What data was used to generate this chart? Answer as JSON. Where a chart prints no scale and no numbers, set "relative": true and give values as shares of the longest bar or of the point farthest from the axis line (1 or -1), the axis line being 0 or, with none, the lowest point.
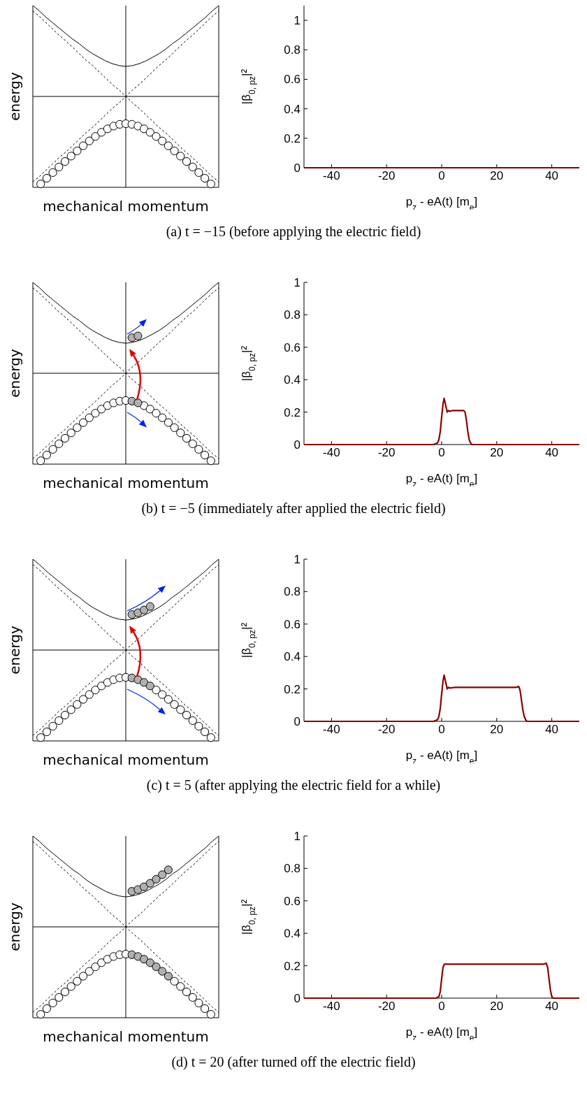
{
  "chart_data": [
    {
      "type": "line",
      "relative": true,
      "xlabel": "mechanical momentum",
      "ylabel": "energy",
      "grid": false,
      "legend": false,
      "categories": [
        null,
        null,
        null,
        null,
        null,
        null,
        null,
        null,
        null,
        null,
        null,
        null,
        null,
        null,
        null,
        null,
        null,
        null,
        null,
        null,
        null,
        null,
        null,
        null,
        null,
        null,
        null,
        null,
        null
      ],
      "series": [
        {
          "color": "#000000",
          "values": [
            1,
            0.94,
            0.87,
            0.81,
            0.75,
            0.69,
            0.63,
            0.58,
            0.52,
            0.47,
            0.43,
            0.39,
            0.36,
            0.34,
            0.33,
            0.34,
            0.36,
            0.39,
            0.43,
            0.47,
            0.52,
            0.58,
            0.63,
            0.69,
            0.75,
            0.81,
            0.87,
            0.94,
            1
          ]
        },
        {
          "color": "#000000",
          "line_style": "dashed",
          "values": [
            -0.94,
            -0.88,
            -0.81,
            -0.74,
            -0.67,
            -0.61,
            -0.54,
            -0.47,
            -0.4,
            -0.34,
            -0.27,
            -0.2,
            -0.13,
            -0.07,
            0,
            0.07,
            0.13,
            0.2,
            0.27,
            0.34,
            0.4,
            0.47,
            0.54,
            0.61,
            0.67,
            0.74,
            0.81,
            0.88,
            0.94
          ]
        },
        {
          "color": "#000000",
          "line_style": "dashed",
          "values": [
            0.94,
            0.88,
            0.81,
            0.74,
            0.67,
            0.61,
            0.54,
            0.47,
            0.4,
            0.34,
            0.27,
            0.2,
            0.13,
            0.07,
            0,
            -0.07,
            -0.13,
            -0.2,
            -0.27,
            -0.34,
            -0.4,
            -0.47,
            -0.54,
            -0.61,
            -0.67,
            -0.74,
            -0.81,
            -0.88,
            -0.94
          ]
        }
      ]
    },
    {
      "type": "line",
      "xlabel": "p$_{z}$ - eA(t) [m$_{e}$]",
      "ylabel": "|β$_{0, p}$$_{z}$|²",
      "xlim": [
        -50,
        50
      ],
      "ylim": [
        0,
        1.1
      ],
      "xticks": [
        -40,
        -20,
        0,
        20,
        40
      ],
      "yticks": [
        0,
        0.2,
        0.4,
        0.6,
        0.8,
        1
      ],
      "grid": false,
      "legend": false,
      "series": [
        {
          "color": "#8b0000",
          "x": [
            -50,
            50
          ],
          "values": [
            0,
            0
          ]
        }
      ],
      "annotations": [
        "(a) t = −15 (before applying the electric field)"
      ]
    },
    {
      "type": "line",
      "relative": true,
      "xlabel": "mechanical momentum",
      "ylabel": "energy",
      "grid": false,
      "legend": false,
      "categories": [
        null,
        null,
        null,
        null,
        null,
        null,
        null,
        null,
        null,
        null,
        null,
        null,
        null,
        null,
        null,
        null,
        null,
        null,
        null,
        null,
        null,
        null,
        null,
        null,
        null,
        null,
        null,
        null,
        null
      ],
      "series": [
        {
          "color": "#000000",
          "values": [
            1,
            0.94,
            0.87,
            0.81,
            0.75,
            0.69,
            0.63,
            0.58,
            0.52,
            0.47,
            0.43,
            0.39,
            0.36,
            0.34,
            0.33,
            0.34,
            0.36,
            0.39,
            0.43,
            0.47,
            0.52,
            0.58,
            0.63,
            0.69,
            0.75,
            0.81,
            0.87,
            0.94,
            1
          ]
        },
        {
          "color": "#000000",
          "line_style": "dashed",
          "values": [
            -0.94,
            -0.88,
            -0.81,
            -0.74,
            -0.67,
            -0.61,
            -0.54,
            -0.47,
            -0.4,
            -0.34,
            -0.27,
            -0.2,
            -0.13,
            -0.07,
            0,
            0.07,
            0.13,
            0.2,
            0.27,
            0.34,
            0.4,
            0.47,
            0.54,
            0.61,
            0.67,
            0.74,
            0.81,
            0.88,
            0.94
          ]
        },
        {
          "color": "#000000",
          "line_style": "dashed",
          "values": [
            0.94,
            0.88,
            0.81,
            0.74,
            0.67,
            0.61,
            0.54,
            0.47,
            0.4,
            0.34,
            0.27,
            0.2,
            0.13,
            0.07,
            0,
            -0.07,
            -0.13,
            -0.2,
            -0.27,
            -0.34,
            -0.4,
            -0.47,
            -0.54,
            -0.61,
            -0.67,
            -0.74,
            -0.81,
            -0.88,
            -0.94
          ]
        }
      ]
    },
    {
      "type": "line",
      "xlabel": "p$_{z}$ - eA(t) [m$_{e}$]",
      "ylabel": "|β$_{0, p}$$_{z}$|²",
      "xlim": [
        -50,
        50
      ],
      "ylim": [
        0,
        1
      ],
      "xticks": [
        -40,
        -20,
        0,
        20,
        40
      ],
      "yticks": [
        0,
        0.2,
        0.4,
        0.6,
        0.8,
        1
      ],
      "grid": false,
      "legend": false,
      "series": [
        {
          "color": "#8b0000",
          "x": [
            -50,
            -3,
            -1.5,
            -1,
            -0.5,
            0,
            0.5,
            0.9,
            1.5,
            2,
            2.5,
            3,
            4,
            6,
            8,
            8.5,
            9,
            9.5,
            10,
            10.5,
            11,
            50
          ],
          "values": [
            0,
            0,
            0.01,
            0.03,
            0.08,
            0.17,
            0.25,
            0.285,
            0.24,
            0.2,
            0.21,
            0.205,
            0.21,
            0.21,
            0.21,
            0.2,
            0.15,
            0.08,
            0.03,
            0.01,
            0,
            0
          ]
        }
      ],
      "annotations": [
        "(b) t = −5 (immediately after applied the electric field)"
      ]
    },
    {
      "type": "line",
      "relative": true,
      "xlabel": "mechanical momentum",
      "ylabel": "energy",
      "grid": false,
      "legend": false,
      "categories": [
        null,
        null,
        null,
        null,
        null,
        null,
        null,
        null,
        null,
        null,
        null,
        null,
        null,
        null,
        null,
        null,
        null,
        null,
        null,
        null,
        null,
        null,
        null,
        null,
        null,
        null,
        null,
        null,
        null
      ],
      "series": [
        {
          "color": "#000000",
          "values": [
            1,
            0.94,
            0.87,
            0.81,
            0.75,
            0.69,
            0.63,
            0.58,
            0.52,
            0.47,
            0.43,
            0.39,
            0.36,
            0.34,
            0.33,
            0.34,
            0.36,
            0.39,
            0.43,
            0.47,
            0.52,
            0.58,
            0.63,
            0.69,
            0.75,
            0.81,
            0.87,
            0.94,
            1
          ]
        },
        {
          "color": "#000000",
          "line_style": "dashed",
          "values": [
            -0.94,
            -0.88,
            -0.81,
            -0.74,
            -0.67,
            -0.61,
            -0.54,
            -0.47,
            -0.4,
            -0.34,
            -0.27,
            -0.2,
            -0.13,
            -0.07,
            0,
            0.07,
            0.13,
            0.2,
            0.27,
            0.34,
            0.4,
            0.47,
            0.54,
            0.61,
            0.67,
            0.74,
            0.81,
            0.88,
            0.94
          ]
        },
        {
          "color": "#000000",
          "line_style": "dashed",
          "values": [
            0.94,
            0.88,
            0.81,
            0.74,
            0.67,
            0.61,
            0.54,
            0.47,
            0.4,
            0.34,
            0.27,
            0.2,
            0.13,
            0.07,
            0,
            -0.07,
            -0.13,
            -0.2,
            -0.27,
            -0.34,
            -0.4,
            -0.47,
            -0.54,
            -0.61,
            -0.67,
            -0.74,
            -0.81,
            -0.88,
            -0.94
          ]
        }
      ]
    },
    {
      "type": "line",
      "xlabel": "p$_{z}$ - eA(t) [m$_{e}$]",
      "ylabel": "|β$_{0, p}$$_{z}$|²",
      "xlim": [
        -50,
        50
      ],
      "ylim": [
        0,
        1
      ],
      "xticks": [
        -40,
        -20,
        0,
        20,
        40
      ],
      "yticks": [
        0,
        0.2,
        0.4,
        0.6,
        0.8,
        1
      ],
      "grid": false,
      "legend": false,
      "series": [
        {
          "color": "#8b0000",
          "x": [
            -50,
            -3,
            -1.5,
            -1,
            -0.5,
            0,
            0.5,
            0.9,
            1.5,
            2,
            2.5,
            3,
            5,
            10,
            20,
            27,
            28,
            28.5,
            29,
            29.5,
            30,
            30.5,
            31,
            50
          ],
          "values": [
            0,
            0,
            0.01,
            0.03,
            0.08,
            0.17,
            0.25,
            0.285,
            0.24,
            0.2,
            0.21,
            0.205,
            0.21,
            0.21,
            0.21,
            0.21,
            0.215,
            0.19,
            0.13,
            0.07,
            0.03,
            0.01,
            0,
            0
          ]
        }
      ],
      "annotations": [
        "(c) t = 5 (after applying the electric field for a while)"
      ]
    },
    {
      "type": "line",
      "relative": true,
      "xlabel": "mechanical momentum",
      "ylabel": "energy",
      "grid": false,
      "legend": false,
      "categories": [
        null,
        null,
        null,
        null,
        null,
        null,
        null,
        null,
        null,
        null,
        null,
        null,
        null,
        null,
        null,
        null,
        null,
        null,
        null,
        null,
        null,
        null,
        null,
        null,
        null,
        null,
        null,
        null,
        null
      ],
      "series": [
        {
          "color": "#000000",
          "values": [
            1,
            0.94,
            0.87,
            0.81,
            0.75,
            0.69,
            0.63,
            0.58,
            0.52,
            0.47,
            0.43,
            0.39,
            0.36,
            0.34,
            0.33,
            0.34,
            0.36,
            0.39,
            0.43,
            0.47,
            0.52,
            0.58,
            0.63,
            0.69,
            0.75,
            0.81,
            0.87,
            0.94,
            1
          ]
        },
        {
          "color": "#000000",
          "line_style": "dashed",
          "values": [
            -0.94,
            -0.88,
            -0.81,
            -0.74,
            -0.67,
            -0.61,
            -0.54,
            -0.47,
            -0.4,
            -0.34,
            -0.27,
            -0.2,
            -0.13,
            -0.07,
            0,
            0.07,
            0.13,
            0.2,
            0.27,
            0.34,
            0.4,
            0.47,
            0.54,
            0.61,
            0.67,
            0.74,
            0.81,
            0.88,
            0.94
          ]
        },
        {
          "color": "#000000",
          "line_style": "dashed",
          "values": [
            0.94,
            0.88,
            0.81,
            0.74,
            0.67,
            0.61,
            0.54,
            0.47,
            0.4,
            0.34,
            0.27,
            0.2,
            0.13,
            0.07,
            0,
            -0.07,
            -0.13,
            -0.2,
            -0.27,
            -0.34,
            -0.4,
            -0.47,
            -0.54,
            -0.61,
            -0.67,
            -0.74,
            -0.81,
            -0.88,
            -0.94
          ]
        }
      ]
    },
    {
      "type": "line",
      "xlabel": "p$_{z}$ - eA(t) [m$_{e}$]",
      "ylabel": "|β$_{0, p}$$_{z}$|²",
      "xlim": [
        -50,
        50
      ],
      "ylim": [
        0,
        1
      ],
      "xticks": [
        -40,
        -20,
        0,
        20,
        40
      ],
      "yticks": [
        0,
        0.2,
        0.4,
        0.6,
        0.8,
        1
      ],
      "grid": false,
      "legend": false,
      "series": [
        {
          "color": "#8b0000",
          "x": [
            -50,
            -2,
            -1,
            -0.5,
            0,
            0.5,
            1,
            2,
            10,
            20,
            30,
            37,
            38,
            38.5,
            39,
            39.5,
            40,
            40.5,
            50
          ],
          "values": [
            0,
            0,
            0.01,
            0.04,
            0.12,
            0.19,
            0.21,
            0.21,
            0.21,
            0.21,
            0.21,
            0.21,
            0.215,
            0.19,
            0.12,
            0.05,
            0.01,
            0,
            0
          ]
        }
      ],
      "annotations": [
        "(d) t = 20 (after turned off the electric field)"
      ]
    }
  ]
}
